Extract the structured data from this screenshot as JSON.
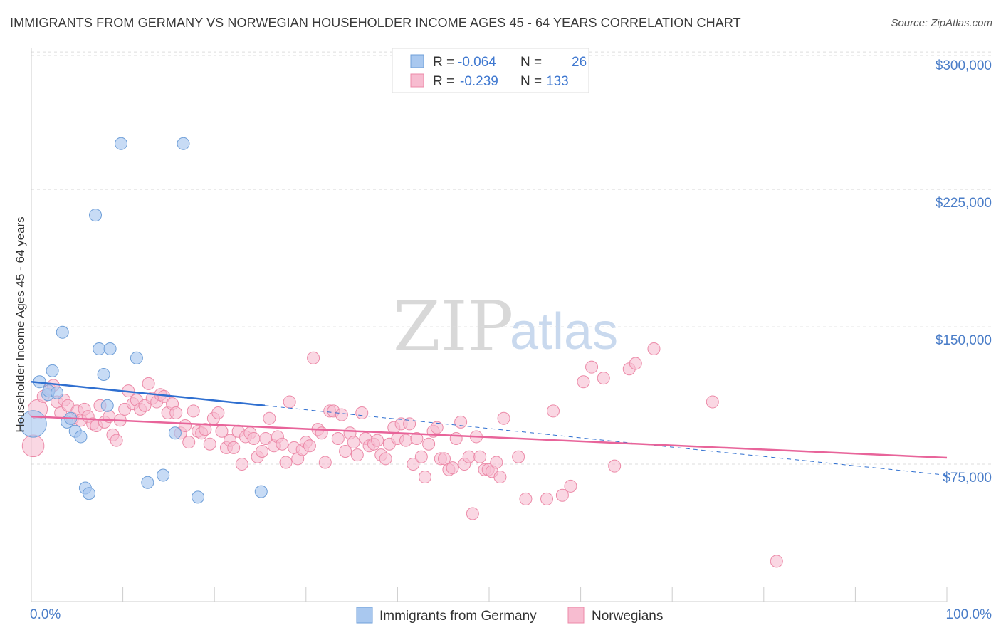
{
  "title": "IMMIGRANTS FROM GERMANY VS NORWEGIAN HOUSEHOLDER INCOME AGES 45 - 64 YEARS CORRELATION CHART",
  "source": "Source: ZipAtlas.com",
  "watermark": {
    "part1": "ZIP",
    "part2": "atlas"
  },
  "colors": {
    "blue": "#a9c8ef",
    "blue_edge": "#6f9fd8",
    "blue_line": "#2f6fd0",
    "pink": "#f7bcd0",
    "pink_edge": "#ec8aa8",
    "pink_line": "#e8649a",
    "axis_text": "#4a7dc8",
    "grid": "#dddddd"
  },
  "legend": {
    "r_label": "R =",
    "n_label": "N =",
    "blue": {
      "r": "-0.064",
      "n": "26"
    },
    "pink": {
      "r": "-0.239",
      "n": "133"
    }
  },
  "chart_data": {
    "type": "scatter",
    "title": "IMMIGRANTS FROM GERMANY VS NORWEGIAN HOUSEHOLDER INCOME AGES 45 - 64 YEARS CORRELATION CHART",
    "xlabel": "",
    "ylabel": "Householder Income Ages 45 - 64 years",
    "xlim": [
      0,
      100
    ],
    "ylim": [
      0,
      302000
    ],
    "x_tick_labels": [
      "0.0%",
      "100.0%"
    ],
    "y_ticks": [
      75000,
      150000,
      225000,
      300000
    ],
    "y_tick_labels": [
      "$75,000",
      "$150,000",
      "$225,000",
      "$300,000"
    ],
    "grid": "horizontal dashed",
    "legend_position": "top-center",
    "series": [
      {
        "name": "Immigrants from Germany",
        "color": "#a9c8ef",
        "trend": {
          "x": [
            0,
            25.5
          ],
          "y": [
            120000,
            107000
          ],
          "dashed_extension_to": [
            100,
            69000
          ]
        },
        "points": [
          [
            0.2,
            97000,
            2.2
          ],
          [
            0.9,
            120000,
            1
          ],
          [
            1.8,
            113000,
            1
          ],
          [
            1.9,
            115000,
            1
          ],
          [
            2.3,
            126000,
            1
          ],
          [
            2.8,
            114000,
            1
          ],
          [
            3.4,
            147000,
            1
          ],
          [
            3.9,
            98000,
            1
          ],
          [
            4.3,
            100000,
            1
          ],
          [
            4.8,
            93000,
            1
          ],
          [
            5.4,
            90000,
            1
          ],
          [
            5.9,
            62000,
            1
          ],
          [
            6.3,
            59000,
            1
          ],
          [
            7.0,
            211000,
            1
          ],
          [
            7.4,
            138000,
            1
          ],
          [
            7.9,
            124000,
            1
          ],
          [
            8.3,
            107000,
            1
          ],
          [
            8.6,
            138000,
            1
          ],
          [
            9.8,
            250000,
            1
          ],
          [
            11.5,
            133000,
            1
          ],
          [
            12.7,
            65000,
            1
          ],
          [
            14.4,
            69000,
            1
          ],
          [
            15.7,
            92000,
            1
          ],
          [
            16.6,
            250000,
            1
          ],
          [
            18.2,
            57000,
            1
          ],
          [
            25.1,
            60000,
            1
          ]
        ]
      },
      {
        "name": "Norwegians",
        "color": "#f7bcd0",
        "trend": {
          "x": [
            0,
            100
          ],
          "y": [
            101000,
            78500
          ]
        },
        "points": [
          [
            0.2,
            85000,
            1.8
          ],
          [
            0.7,
            105000,
            1.6
          ],
          [
            1.3,
            112000,
            1
          ],
          [
            2.0,
            116000,
            1
          ],
          [
            2.4,
            118000,
            1
          ],
          [
            2.8,
            109000,
            1
          ],
          [
            3.2,
            103000,
            1
          ],
          [
            3.6,
            110000,
            1
          ],
          [
            4.0,
            107000,
            1
          ],
          [
            4.5,
            100000,
            1
          ],
          [
            5.0,
            104000,
            1
          ],
          [
            5.4,
            99000,
            1
          ],
          [
            5.8,
            105000,
            1
          ],
          [
            6.2,
            101000,
            1
          ],
          [
            6.7,
            97000,
            1
          ],
          [
            7.1,
            96000,
            1
          ],
          [
            7.5,
            107000,
            1
          ],
          [
            8.0,
            98000,
            1
          ],
          [
            8.5,
            101000,
            1
          ],
          [
            8.9,
            91000,
            1
          ],
          [
            9.3,
            88000,
            1
          ],
          [
            9.7,
            99000,
            1
          ],
          [
            10.2,
            105000,
            1
          ],
          [
            10.6,
            115000,
            1
          ],
          [
            11.1,
            108000,
            1
          ],
          [
            11.5,
            110000,
            1
          ],
          [
            11.9,
            105000,
            1
          ],
          [
            12.4,
            107000,
            1
          ],
          [
            12.8,
            119000,
            1
          ],
          [
            13.2,
            111000,
            1
          ],
          [
            13.7,
            109000,
            1
          ],
          [
            14.1,
            113000,
            1
          ],
          [
            14.5,
            112000,
            1
          ],
          [
            14.9,
            103000,
            1
          ],
          [
            15.4,
            108000,
            1
          ],
          [
            15.8,
            103000,
            1
          ],
          [
            16.3,
            92000,
            1
          ],
          [
            16.8,
            96000,
            1
          ],
          [
            17.2,
            87000,
            1
          ],
          [
            17.7,
            104000,
            1
          ],
          [
            18.2,
            93000,
            1
          ],
          [
            18.6,
            92000,
            1
          ],
          [
            19.0,
            94000,
            1
          ],
          [
            19.5,
            86000,
            1
          ],
          [
            19.9,
            100000,
            1
          ],
          [
            20.4,
            103000,
            1
          ],
          [
            20.8,
            93000,
            1
          ],
          [
            21.3,
            84000,
            1
          ],
          [
            21.7,
            88000,
            1
          ],
          [
            22.1,
            84000,
            1
          ],
          [
            22.6,
            93000,
            1
          ],
          [
            23.0,
            75000,
            1
          ],
          [
            23.4,
            90000,
            1
          ],
          [
            23.9,
            92000,
            1
          ],
          [
            24.3,
            89000,
            1
          ],
          [
            24.7,
            79000,
            1
          ],
          [
            25.2,
            82000,
            1
          ],
          [
            25.6,
            89000,
            1
          ],
          [
            26.0,
            100000,
            1
          ],
          [
            26.5,
            85000,
            1
          ],
          [
            26.9,
            90000,
            1
          ],
          [
            27.4,
            86000,
            1
          ],
          [
            27.8,
            76000,
            1
          ],
          [
            28.2,
            109000,
            1
          ],
          [
            28.7,
            84000,
            1
          ],
          [
            29.1,
            78000,
            1
          ],
          [
            29.6,
            83000,
            1
          ],
          [
            30.0,
            87000,
            1
          ],
          [
            30.4,
            85000,
            1
          ],
          [
            30.8,
            133000,
            1
          ],
          [
            31.3,
            94000,
            1
          ],
          [
            31.7,
            92000,
            1
          ],
          [
            32.1,
            76000,
            1
          ],
          [
            32.6,
            104000,
            1
          ],
          [
            33.0,
            104000,
            1
          ],
          [
            33.5,
            89000,
            1
          ],
          [
            33.9,
            102000,
            1
          ],
          [
            34.3,
            82000,
            1
          ],
          [
            34.8,
            92000,
            1
          ],
          [
            35.2,
            87000,
            1
          ],
          [
            35.6,
            80000,
            1
          ],
          [
            36.1,
            103000,
            1
          ],
          [
            36.5,
            89000,
            1
          ],
          [
            36.9,
            85000,
            1
          ],
          [
            37.4,
            86000,
            1
          ],
          [
            37.8,
            88000,
            1
          ],
          [
            38.2,
            80000,
            1
          ],
          [
            38.7,
            78000,
            1
          ],
          [
            39.1,
            86000,
            1
          ],
          [
            39.6,
            95000,
            1
          ],
          [
            40.0,
            89000,
            1
          ],
          [
            40.4,
            97000,
            1
          ],
          [
            40.9,
            88000,
            1
          ],
          [
            41.3,
            97000,
            1
          ],
          [
            41.7,
            75000,
            1
          ],
          [
            42.1,
            89000,
            1
          ],
          [
            42.6,
            79000,
            1
          ],
          [
            43.0,
            68000,
            1
          ],
          [
            43.4,
            86000,
            1
          ],
          [
            43.9,
            93000,
            1
          ],
          [
            44.3,
            95000,
            1
          ],
          [
            44.7,
            78000,
            1
          ],
          [
            45.1,
            78000,
            1
          ],
          [
            45.6,
            72000,
            1
          ],
          [
            46.0,
            73000,
            1
          ],
          [
            46.4,
            89000,
            1
          ],
          [
            46.9,
            98000,
            1
          ],
          [
            47.3,
            75000,
            1
          ],
          [
            47.8,
            79000,
            1
          ],
          [
            48.2,
            48000,
            1
          ],
          [
            48.6,
            90000,
            1
          ],
          [
            49.0,
            79000,
            1
          ],
          [
            49.5,
            72000,
            1
          ],
          [
            49.9,
            72000,
            1
          ],
          [
            50.3,
            71000,
            1
          ],
          [
            50.8,
            76000,
            1
          ],
          [
            51.2,
            68000,
            1
          ],
          [
            51.6,
            100000,
            1
          ],
          [
            53.2,
            79000,
            1
          ],
          [
            54.0,
            56000,
            1
          ],
          [
            56.3,
            56000,
            1
          ],
          [
            57.0,
            104000,
            1
          ],
          [
            58.0,
            58000,
            1
          ],
          [
            58.9,
            63000,
            1
          ],
          [
            60.3,
            120000,
            1
          ],
          [
            61.2,
            128000,
            1
          ],
          [
            62.5,
            122000,
            1
          ],
          [
            63.7,
            74000,
            1
          ],
          [
            65.3,
            127000,
            1
          ],
          [
            66.0,
            130000,
            1
          ],
          [
            68.0,
            138000,
            1
          ],
          [
            74.4,
            109000,
            1
          ],
          [
            81.4,
            22000,
            1
          ]
        ]
      }
    ]
  },
  "bottom_legend": [
    "Immigrants from Germany",
    "Norwegians"
  ]
}
